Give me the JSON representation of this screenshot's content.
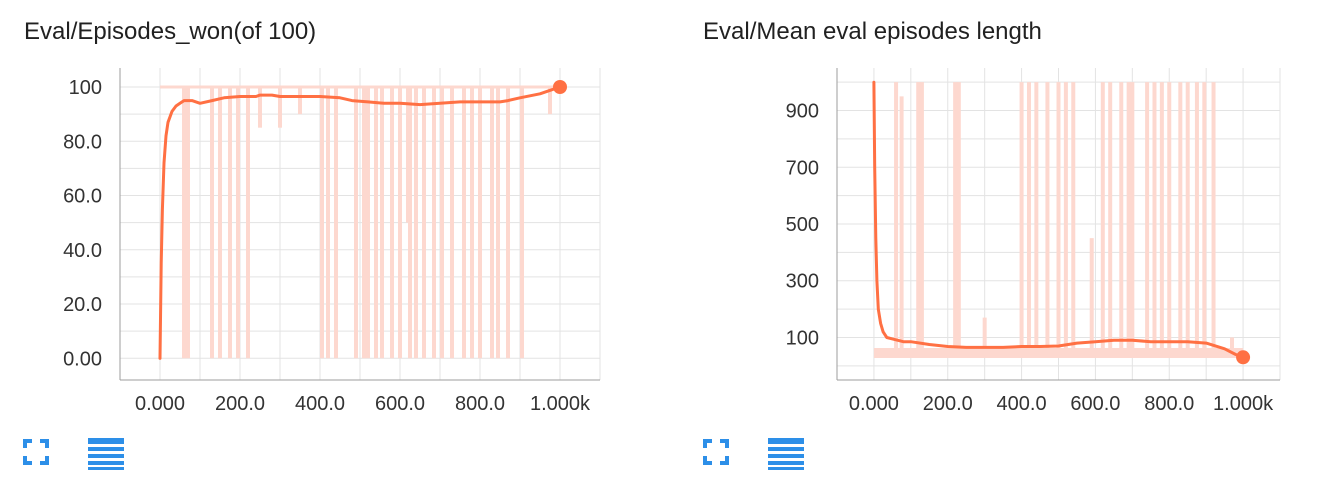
{
  "colors": {
    "series": "#ff7043",
    "raw": "#fdd8cf",
    "grid": "#e3e3e3",
    "axis": "#9e9e9e",
    "icon": "#2d8fe8"
  },
  "icons": {
    "expand": "fullscreen-icon",
    "data_table": "menu-lines-icon"
  },
  "chart_data": [
    {
      "type": "line",
      "title": "Eval/Episodes_won(of 100)",
      "xlabel": "",
      "ylabel": "",
      "xlim": [
        -100,
        1100
      ],
      "ylim": [
        -8,
        107
      ],
      "xticks": [
        0,
        200,
        400,
        600,
        800,
        1000
      ],
      "xtick_labels": [
        "0.000",
        "200.0",
        "400.0",
        "600.0",
        "800.0",
        "1.000k"
      ],
      "yticks": [
        0,
        20,
        40,
        60,
        80,
        100
      ],
      "ytick_labels": [
        "0.00",
        "20.0",
        "40.0",
        "60.0",
        "80.0",
        "100"
      ],
      "grid": true,
      "series": [
        {
          "role": "smoothed",
          "x": [
            0,
            3,
            6,
            10,
            15,
            20,
            30,
            40,
            50,
            60,
            80,
            100,
            130,
            160,
            200,
            240,
            250,
            280,
            300,
            350,
            400,
            450,
            480,
            520,
            560,
            600,
            650,
            700,
            750,
            800,
            850,
            870,
            900,
            950,
            980,
            1000
          ],
          "y": [
            0,
            35,
            55,
            72,
            82,
            87,
            91,
            93,
            94,
            95,
            95,
            94,
            95,
            96,
            96.5,
            96.5,
            97,
            97,
            96.5,
            96.5,
            96.5,
            96,
            95,
            94.5,
            94,
            94,
            93.5,
            94,
            94.5,
            94.5,
            94.5,
            95,
            96,
            97.5,
            99,
            100
          ]
        }
      ],
      "raw_drops": [
        {
          "x": 60,
          "y": 0
        },
        {
          "x": 70,
          "y": 0
        },
        {
          "x": 130,
          "y": 0
        },
        {
          "x": 150,
          "y": 0
        },
        {
          "x": 175,
          "y": 0
        },
        {
          "x": 195,
          "y": 0
        },
        {
          "x": 220,
          "y": 0
        },
        {
          "x": 405,
          "y": 0
        },
        {
          "x": 420,
          "y": 0
        },
        {
          "x": 440,
          "y": 0
        },
        {
          "x": 490,
          "y": 0
        },
        {
          "x": 510,
          "y": 0
        },
        {
          "x": 520,
          "y": 0
        },
        {
          "x": 540,
          "y": 0
        },
        {
          "x": 555,
          "y": 0
        },
        {
          "x": 580,
          "y": 0
        },
        {
          "x": 600,
          "y": 0
        },
        {
          "x": 625,
          "y": 0
        },
        {
          "x": 640,
          "y": 0
        },
        {
          "x": 660,
          "y": 0
        },
        {
          "x": 685,
          "y": 0
        },
        {
          "x": 705,
          "y": 0
        },
        {
          "x": 730,
          "y": 0
        },
        {
          "x": 760,
          "y": 0
        },
        {
          "x": 780,
          "y": 0
        },
        {
          "x": 800,
          "y": 0
        },
        {
          "x": 830,
          "y": 0
        },
        {
          "x": 845,
          "y": 0
        },
        {
          "x": 870,
          "y": 0
        },
        {
          "x": 905,
          "y": 0
        },
        {
          "x": 250,
          "y": 85
        },
        {
          "x": 300,
          "y": 85
        },
        {
          "x": 350,
          "y": 90
        },
        {
          "x": 620,
          "y": 50
        },
        {
          "x": 975,
          "y": 90
        }
      ]
    },
    {
      "type": "line",
      "title": "Eval/Mean eval episodes length",
      "xlabel": "",
      "ylabel": "",
      "xlim": [
        -100,
        1100
      ],
      "ylim": [
        -50,
        1050
      ],
      "xticks": [
        0,
        200,
        400,
        600,
        800,
        1000
      ],
      "xtick_labels": [
        "0.000",
        "200.0",
        "400.0",
        "600.0",
        "800.0",
        "1.000k"
      ],
      "yticks": [
        100,
        300,
        500,
        700,
        900
      ],
      "ytick_labels": [
        "100",
        "300",
        "500",
        "700",
        "900"
      ],
      "grid": true,
      "series": [
        {
          "role": "smoothed",
          "x": [
            0,
            2,
            5,
            8,
            12,
            18,
            25,
            35,
            50,
            65,
            80,
            100,
            150,
            200,
            250,
            300,
            350,
            400,
            450,
            500,
            550,
            600,
            650,
            700,
            750,
            800,
            850,
            900,
            950,
            980,
            1000
          ],
          "y": [
            1000,
            700,
            450,
            300,
            200,
            150,
            120,
            100,
            95,
            90,
            85,
            85,
            75,
            68,
            65,
            65,
            65,
            68,
            68,
            70,
            80,
            85,
            90,
            90,
            85,
            85,
            85,
            80,
            60,
            40,
            30
          ]
        }
      ],
      "raw_spikes": [
        {
          "x": 60,
          "y": 1000
        },
        {
          "x": 75,
          "y": 950
        },
        {
          "x": 120,
          "y": 1000
        },
        {
          "x": 130,
          "y": 1000
        },
        {
          "x": 220,
          "y": 1000
        },
        {
          "x": 230,
          "y": 1000
        },
        {
          "x": 300,
          "y": 170
        },
        {
          "x": 400,
          "y": 1000
        },
        {
          "x": 420,
          "y": 1000
        },
        {
          "x": 440,
          "y": 1000
        },
        {
          "x": 470,
          "y": 1000
        },
        {
          "x": 500,
          "y": 1000
        },
        {
          "x": 520,
          "y": 1000
        },
        {
          "x": 540,
          "y": 1000
        },
        {
          "x": 590,
          "y": 450
        },
        {
          "x": 620,
          "y": 1000
        },
        {
          "x": 640,
          "y": 1000
        },
        {
          "x": 670,
          "y": 1000
        },
        {
          "x": 690,
          "y": 1000
        },
        {
          "x": 700,
          "y": 1000
        },
        {
          "x": 740,
          "y": 1000
        },
        {
          "x": 760,
          "y": 1000
        },
        {
          "x": 780,
          "y": 1000
        },
        {
          "x": 800,
          "y": 1000
        },
        {
          "x": 830,
          "y": 1000
        },
        {
          "x": 850,
          "y": 1000
        },
        {
          "x": 875,
          "y": 1000
        },
        {
          "x": 895,
          "y": 1000
        },
        {
          "x": 920,
          "y": 1000
        },
        {
          "x": 970,
          "y": 100
        }
      ]
    }
  ]
}
